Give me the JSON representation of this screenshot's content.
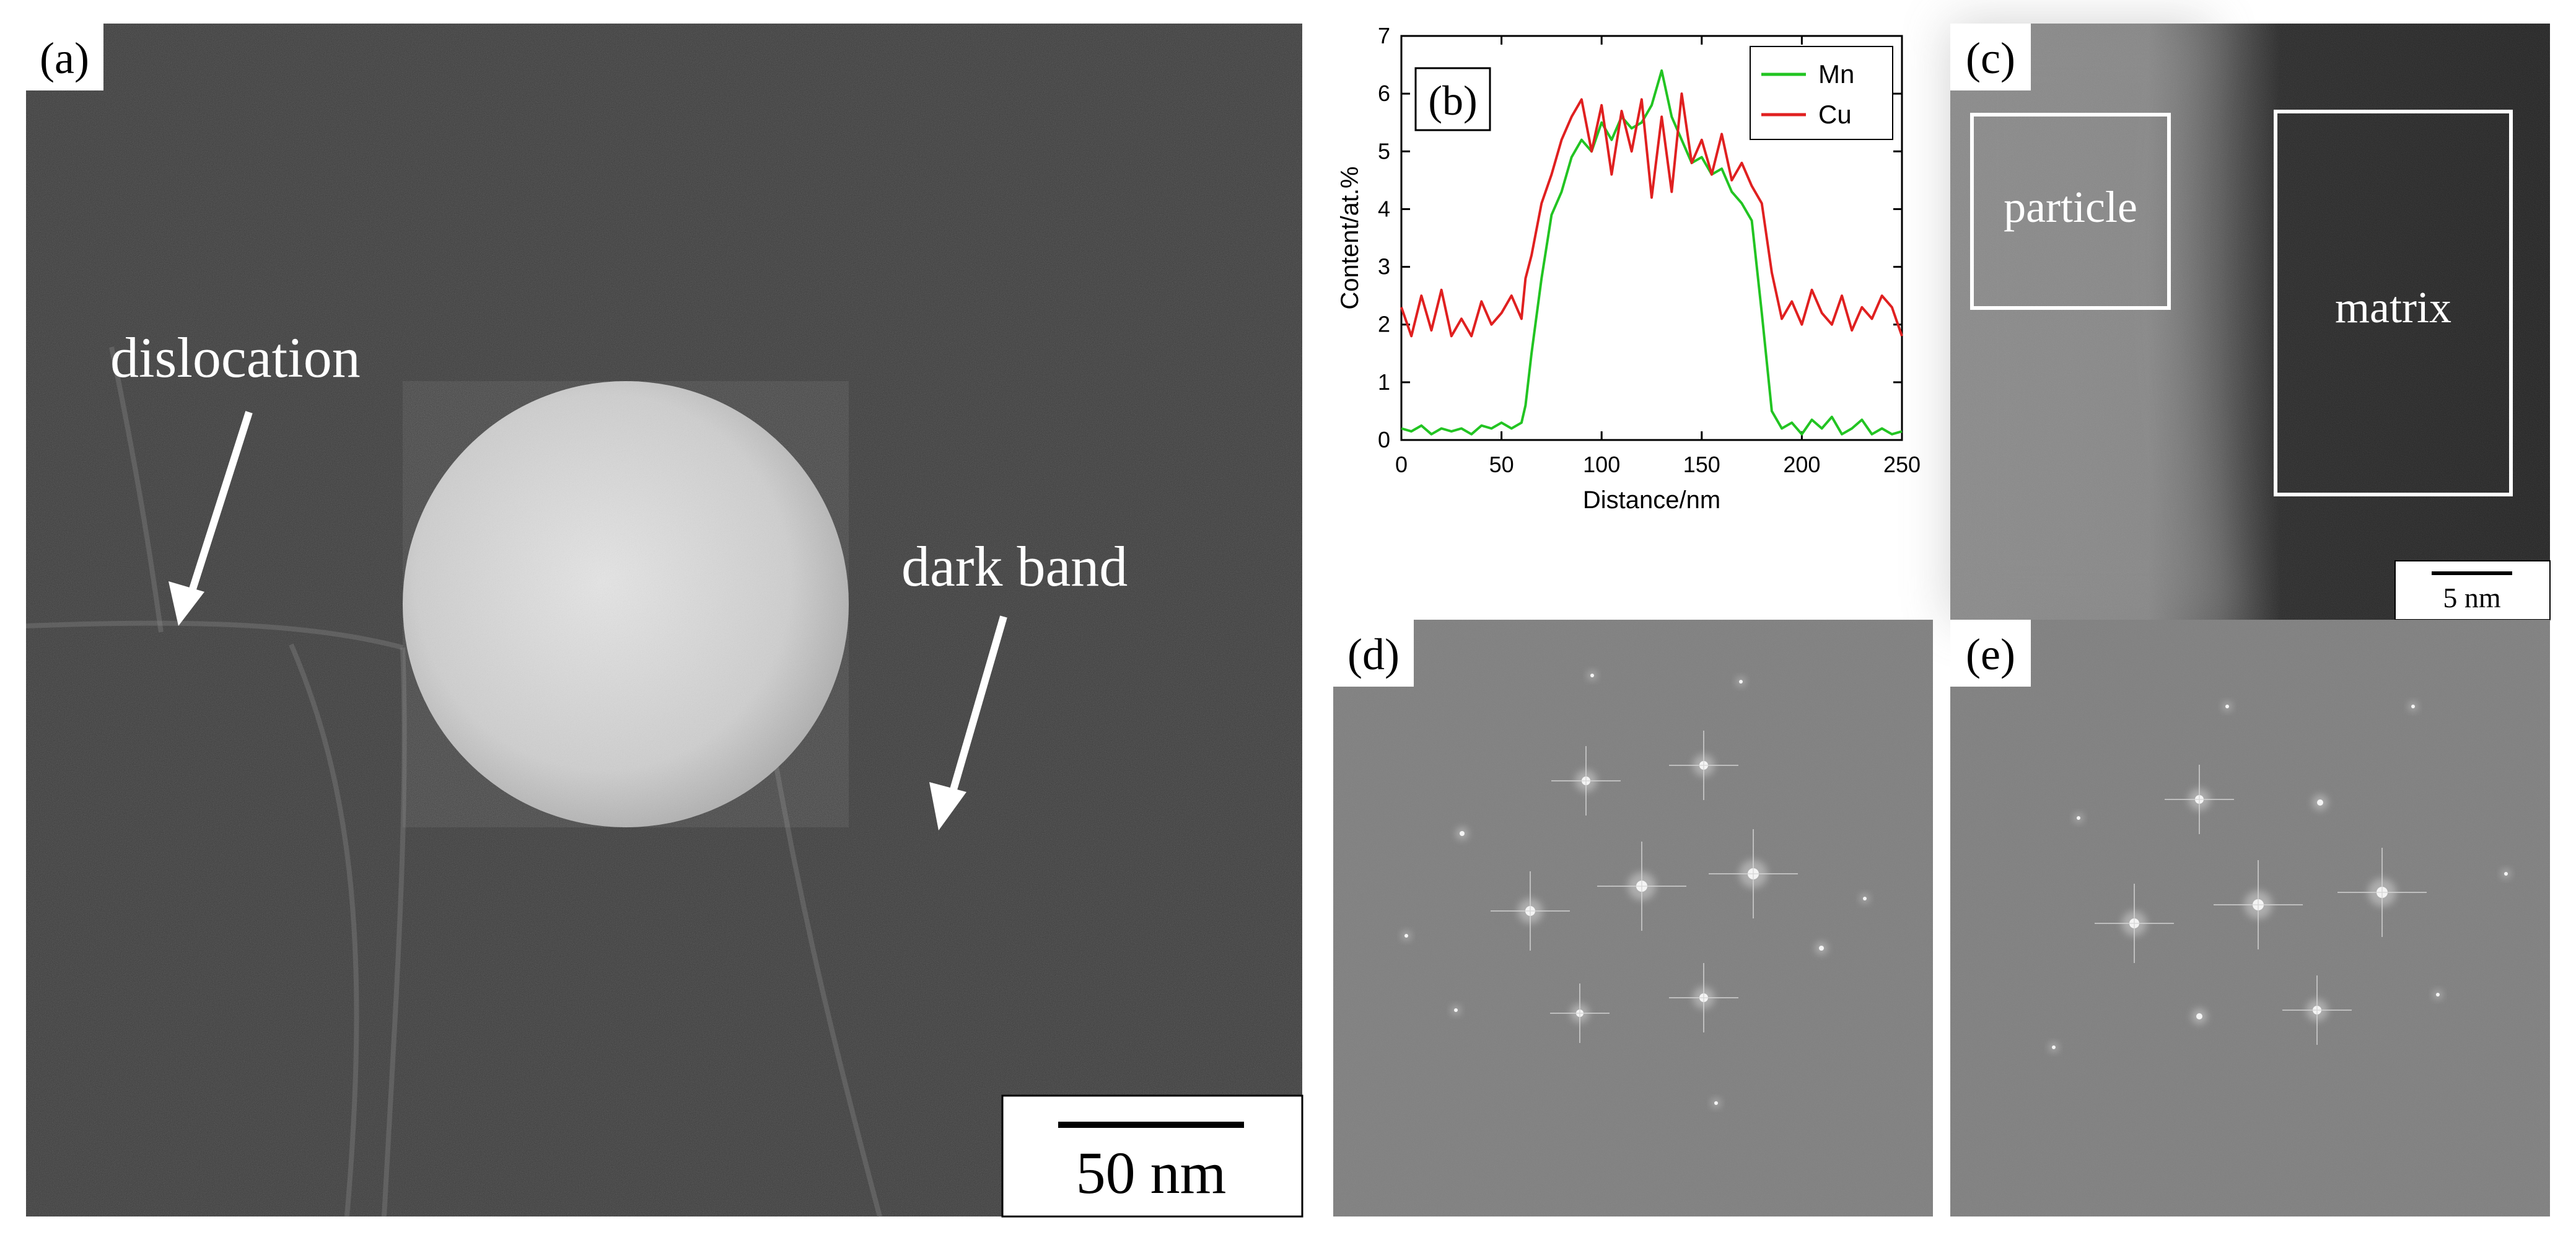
{
  "figure": {
    "panel_a": {
      "label": "(a)",
      "annotations": {
        "dislocation": "dislocation",
        "dark_band": "dark band"
      },
      "scale_bar": "50 nm"
    },
    "panel_b": {
      "label": "(b)"
    },
    "panel_c": {
      "label": "(c)",
      "regions": {
        "particle": "particle",
        "matrix": "matrix"
      },
      "scale_bar": "5 nm"
    },
    "panel_d": {
      "label": "(d)"
    },
    "panel_e": {
      "label": "(e)"
    }
  },
  "chart_data": {
    "type": "line",
    "title": "",
    "xlabel": "Distance/nm",
    "ylabel": "Content/at.%",
    "xlim": [
      0,
      250
    ],
    "ylim": [
      0,
      7
    ],
    "xticks": [
      "0",
      "50",
      "100",
      "150",
      "200",
      "250"
    ],
    "yticks": [
      "0",
      "1",
      "2",
      "3",
      "4",
      "5",
      "6",
      "7"
    ],
    "grid": false,
    "legend_position": "top-right",
    "x": [
      0,
      5,
      10,
      15,
      20,
      25,
      30,
      35,
      40,
      45,
      50,
      55,
      60,
      62,
      65,
      70,
      75,
      80,
      85,
      90,
      95,
      100,
      105,
      110,
      115,
      120,
      125,
      130,
      135,
      140,
      145,
      150,
      155,
      160,
      165,
      170,
      175,
      180,
      185,
      190,
      195,
      200,
      205,
      210,
      215,
      220,
      225,
      230,
      235,
      240,
      245,
      250
    ],
    "series": [
      {
        "name": "Mn",
        "color": "#22c422",
        "values": [
          0.2,
          0.15,
          0.25,
          0.1,
          0.2,
          0.15,
          0.2,
          0.1,
          0.25,
          0.2,
          0.3,
          0.2,
          0.3,
          0.6,
          1.5,
          2.8,
          3.9,
          4.3,
          4.9,
          5.2,
          5.0,
          5.5,
          5.2,
          5.6,
          5.4,
          5.5,
          5.8,
          6.4,
          5.6,
          5.2,
          4.8,
          4.9,
          4.6,
          4.7,
          4.3,
          4.1,
          3.8,
          2.2,
          0.5,
          0.2,
          0.3,
          0.1,
          0.35,
          0.2,
          0.4,
          0.1,
          0.2,
          0.35,
          0.1,
          0.2,
          0.1,
          0.15
        ]
      },
      {
        "name": "Cu",
        "color": "#e02020",
        "values": [
          2.3,
          1.8,
          2.5,
          1.9,
          2.6,
          1.8,
          2.1,
          1.8,
          2.4,
          2.0,
          2.2,
          2.5,
          2.1,
          2.8,
          3.2,
          4.1,
          4.6,
          5.2,
          5.6,
          5.9,
          5.0,
          5.8,
          4.6,
          5.7,
          5.0,
          5.9,
          4.2,
          5.6,
          4.3,
          6.0,
          4.8,
          5.2,
          4.6,
          5.3,
          4.5,
          4.8,
          4.4,
          4.1,
          2.9,
          2.1,
          2.4,
          2.0,
          2.6,
          2.2,
          2.0,
          2.5,
          1.9,
          2.3,
          2.1,
          2.5,
          2.3,
          1.8
        ]
      }
    ]
  }
}
